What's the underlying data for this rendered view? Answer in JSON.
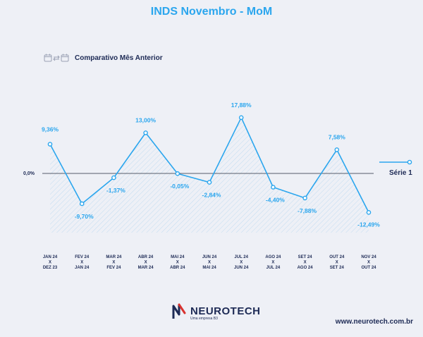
{
  "title": "INDS Novembro - MoM",
  "subtitle": "Comparativo Mês Anterior",
  "chart_data": {
    "type": "line",
    "title": "INDS Novembro - MoM",
    "subtitle": "Comparativo Mês Anterior",
    "categories": [
      [
        "JAN 24",
        "X",
        "DEZ 23"
      ],
      [
        "FEV 24",
        "X",
        "JAN 24"
      ],
      [
        "MAR 24",
        "X",
        "FEV 24"
      ],
      [
        "ABR 24",
        "X",
        "MAR 24"
      ],
      [
        "MAI 24",
        "X",
        "ABR 24"
      ],
      [
        "JUN 24",
        "X",
        "MAI 24"
      ],
      [
        "JUL 24",
        "X",
        "JUN 24"
      ],
      [
        "AGO 24",
        "X",
        "JUL 24"
      ],
      [
        "SET 24",
        "X",
        "AGO 24"
      ],
      [
        "OUT 24",
        "X",
        "SET 24"
      ],
      [
        "NOV 24",
        "X",
        "OUT 24"
      ]
    ],
    "series": [
      {
        "name": "Série 1",
        "values": [
          9.36,
          -9.7,
          -1.37,
          13.0,
          -0.05,
          -2.84,
          17.88,
          -4.4,
          -7.88,
          7.58,
          -12.49
        ],
        "labels": [
          "9,36%",
          "-9,70%",
          "-1,37%",
          "13,00%",
          "-0,05%",
          "-2,84%",
          "17,88%",
          "-4,40%",
          "-7,88%",
          "7,58%",
          "-12,49%"
        ],
        "color": "#2ba6ee"
      }
    ],
    "zero_label": "0,0%",
    "ylim": [
      -20,
      20
    ],
    "legend": "right",
    "grid": false
  },
  "footer": {
    "brand": "NEUROTECH",
    "tagline": "Uma empresa B3",
    "website": "www.neurotech.com.br"
  },
  "colors": {
    "accent": "#2ba6ee",
    "navy": "#1d2a55",
    "zero_line": "#555b6a"
  }
}
